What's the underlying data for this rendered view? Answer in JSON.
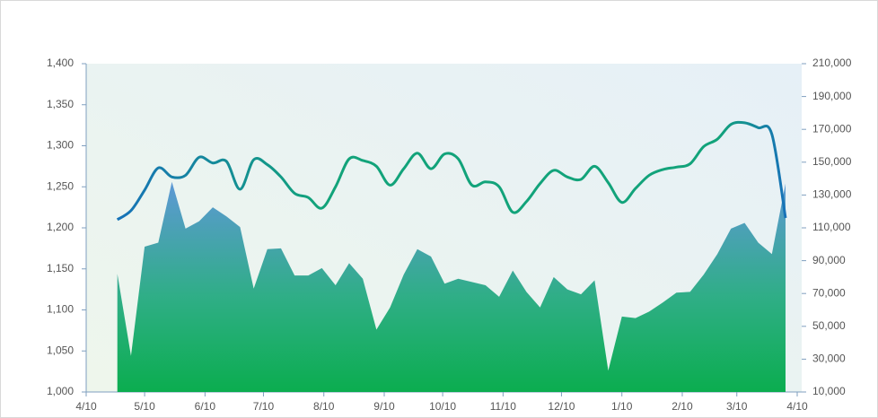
{
  "chart_data": {
    "type": "line-area",
    "x": [
      16,
      23,
      30,
      37,
      44,
      51,
      58,
      65,
      72,
      79,
      86,
      93,
      100,
      107,
      114,
      121,
      128,
      135,
      142,
      149,
      156,
      163,
      170,
      177,
      184,
      191,
      198,
      205,
      212,
      219,
      226,
      233,
      240,
      247,
      254,
      261,
      268,
      275,
      282,
      289,
      296,
      303,
      310,
      317,
      324,
      331,
      338,
      345,
      352,
      359
    ],
    "xlim": [
      0,
      365
    ],
    "xticks": [
      {
        "value": 0,
        "label": "4/10"
      },
      {
        "value": 30,
        "label": "5/10"
      },
      {
        "value": 61,
        "label": "6/10"
      },
      {
        "value": 91,
        "label": "7/10"
      },
      {
        "value": 122,
        "label": "8/10"
      },
      {
        "value": 153,
        "label": "9/10"
      },
      {
        "value": 183,
        "label": "10/10"
      },
      {
        "value": 214,
        "label": "11/10"
      },
      {
        "value": 244,
        "label": "12/10"
      },
      {
        "value": 275,
        "label": "1/10"
      },
      {
        "value": 306,
        "label": "2/10"
      },
      {
        "value": 334,
        "label": "3/10"
      },
      {
        "value": 365,
        "label": "4/10"
      }
    ],
    "ylim": [
      1000,
      1400
    ],
    "yticks": [
      {
        "value": 1000,
        "label": "1,000"
      },
      {
        "value": 1050,
        "label": "1,050"
      },
      {
        "value": 1100,
        "label": "1,100"
      },
      {
        "value": 1150,
        "label": "1,150"
      },
      {
        "value": 1200,
        "label": "1,200"
      },
      {
        "value": 1250,
        "label": "1,250"
      },
      {
        "value": 1300,
        "label": "1,300"
      },
      {
        "value": 1350,
        "label": "1,350"
      },
      {
        "value": 1400,
        "label": "1,400"
      }
    ],
    "y2lim": [
      10000,
      210000
    ],
    "y2ticks": [
      {
        "value": 10000,
        "label": "10,000"
      },
      {
        "value": 30000,
        "label": "30,000"
      },
      {
        "value": 50000,
        "label": "50,000"
      },
      {
        "value": 70000,
        "label": "70,000"
      },
      {
        "value": 90000,
        "label": "90,000"
      },
      {
        "value": 110000,
        "label": "110,000"
      },
      {
        "value": 130000,
        "label": "130,000"
      },
      {
        "value": 150000,
        "label": "150,000"
      },
      {
        "value": 170000,
        "label": "170,000"
      },
      {
        "value": 190000,
        "label": "190,000"
      },
      {
        "value": 210000,
        "label": "210,000"
      }
    ],
    "series": [
      {
        "type": "area",
        "axis": "y2",
        "color": "#0bad4f",
        "values": [
          82000,
          32000,
          98500,
          101000,
          138000,
          109500,
          114000,
          122500,
          117000,
          110500,
          73000,
          97000,
          97500,
          81000,
          81000,
          85500,
          75000,
          88500,
          79000,
          48000,
          61500,
          81500,
          97000,
          92500,
          76000,
          79000,
          77000,
          75000,
          68000,
          84000,
          71000,
          61500,
          80000,
          72500,
          69500,
          78000,
          23000,
          56000,
          55000,
          59000,
          64500,
          70500,
          71000,
          81500,
          94000,
          109500,
          113000,
          101000,
          94000,
          137000
        ]
      },
      {
        "type": "line",
        "axis": "y",
        "color": "#12a37a",
        "values": [
          1210,
          1221,
          1246,
          1273,
          1262,
          1264,
          1286,
          1279,
          1281,
          1247,
          1283,
          1277,
          1262,
          1242,
          1237,
          1224,
          1250,
          1284,
          1282,
          1275,
          1252,
          1272,
          1291,
          1272,
          1290,
          1284,
          1252,
          1256,
          1250,
          1219,
          1232,
          1254,
          1270,
          1262,
          1259,
          1275,
          1255,
          1231,
          1248,
          1264,
          1271,
          1274,
          1278,
          1299,
          1308,
          1326,
          1328,
          1322,
          1314,
          1212
        ]
      }
    ]
  }
}
